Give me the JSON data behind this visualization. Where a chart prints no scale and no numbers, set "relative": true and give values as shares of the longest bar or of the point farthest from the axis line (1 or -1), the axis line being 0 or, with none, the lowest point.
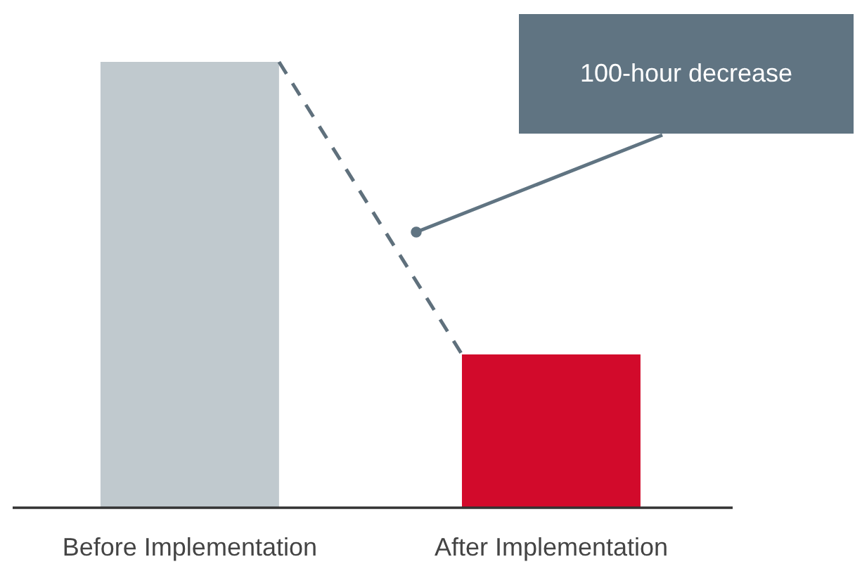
{
  "chart_data": {
    "type": "bar",
    "relative": true,
    "categories": [
      "Before Implementation",
      "After Implementation"
    ],
    "series": [
      {
        "colors": [
          "#c0c9ce",
          "#d20a2b"
        ],
        "values": [
          1,
          0.344
        ]
      }
    ],
    "annotations": [
      "100-hour decrease"
    ],
    "grid": false
  }
}
